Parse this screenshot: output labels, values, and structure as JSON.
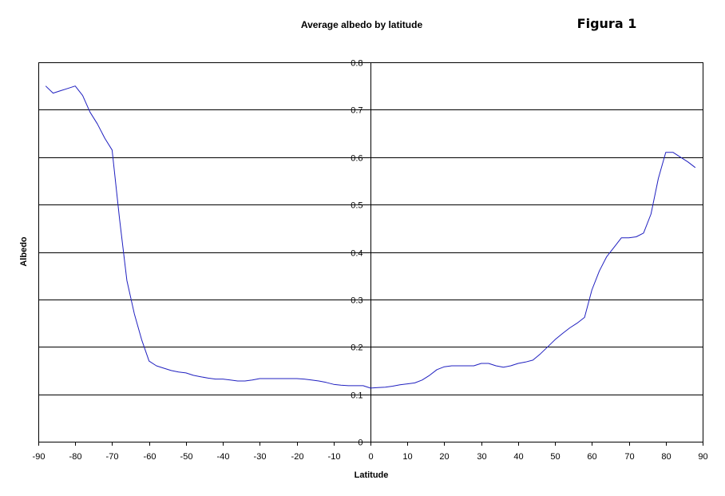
{
  "figure_label": "Figura 1",
  "chart_data": {
    "type": "line",
    "title": "Average albedo by latitude",
    "xlabel": "Latitude",
    "ylabel": "Albedo",
    "xlim": [
      -90,
      90
    ],
    "ylim": [
      0,
      0.8
    ],
    "x_ticks": [
      -90,
      -80,
      -70,
      -60,
      -50,
      -40,
      -30,
      -20,
      -10,
      0,
      10,
      20,
      30,
      40,
      50,
      60,
      70,
      80,
      90
    ],
    "y_ticks": [
      0,
      0.1,
      0.2,
      0.3,
      0.4,
      0.5,
      0.6,
      0.7,
      0.8
    ],
    "x_tick_labels": [
      "-90",
      "-80",
      "-70",
      "-60",
      "-50",
      "-40",
      "-30",
      "-20",
      "-10",
      "0",
      "10",
      "20",
      "30",
      "40",
      "50",
      "60",
      "70",
      "80",
      "90"
    ],
    "y_tick_labels": [
      "0",
      "0.1",
      "0.2",
      "0.3",
      "0.4",
      "0.5",
      "0.6",
      "0.7",
      "0.8"
    ],
    "grid": "horizontal",
    "legend": "none",
    "line_color": "#2020c0",
    "series": [
      {
        "name": "Albedo",
        "x": [
          -88,
          -86,
          -84,
          -82,
          -80,
          -78,
          -76,
          -74,
          -72,
          -70,
          -68,
          -66,
          -64,
          -62,
          -60,
          -58,
          -56,
          -54,
          -52,
          -50,
          -48,
          -46,
          -44,
          -42,
          -40,
          -38,
          -36,
          -34,
          -32,
          -30,
          -28,
          -26,
          -24,
          -22,
          -20,
          -18,
          -16,
          -14,
          -12,
          -10,
          -8,
          -6,
          -4,
          -2,
          0,
          2,
          4,
          6,
          8,
          10,
          12,
          14,
          16,
          18,
          20,
          22,
          24,
          26,
          28,
          30,
          32,
          34,
          36,
          38,
          40,
          42,
          44,
          46,
          48,
          50,
          52,
          54,
          56,
          58,
          60,
          62,
          64,
          66,
          68,
          70,
          72,
          74,
          76,
          78,
          80,
          82,
          84,
          86,
          88
        ],
        "values": [
          0.75,
          0.735,
          0.74,
          0.745,
          0.75,
          0.73,
          0.695,
          0.67,
          0.64,
          0.615,
          0.47,
          0.34,
          0.27,
          0.215,
          0.17,
          0.16,
          0.155,
          0.15,
          0.147,
          0.145,
          0.14,
          0.137,
          0.134,
          0.132,
          0.132,
          0.13,
          0.128,
          0.128,
          0.13,
          0.133,
          0.133,
          0.133,
          0.133,
          0.133,
          0.133,
          0.132,
          0.13,
          0.128,
          0.125,
          0.121,
          0.119,
          0.118,
          0.118,
          0.118,
          0.113,
          0.114,
          0.115,
          0.117,
          0.12,
          0.122,
          0.124,
          0.13,
          0.14,
          0.152,
          0.158,
          0.16,
          0.16,
          0.16,
          0.16,
          0.165,
          0.165,
          0.16,
          0.157,
          0.16,
          0.165,
          0.168,
          0.172,
          0.185,
          0.2,
          0.215,
          0.228,
          0.24,
          0.25,
          0.262,
          0.32,
          0.36,
          0.39,
          0.41,
          0.43,
          0.43,
          0.432,
          0.44,
          0.48,
          0.555,
          0.61,
          0.61,
          0.6,
          0.59,
          0.578
        ]
      }
    ]
  }
}
